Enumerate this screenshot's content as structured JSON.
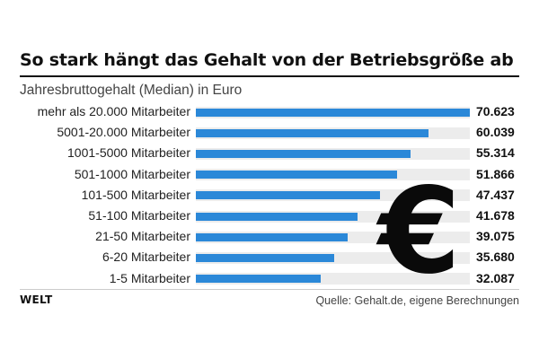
{
  "brand": "WELT",
  "source": "Quelle: Gehalt.de, eigene Berechnungen",
  "icon": "euro-sign-icon",
  "colors": {
    "bar": "#2b88d8",
    "track": "#ececec",
    "text": "#111111"
  },
  "chart_data": {
    "type": "bar",
    "orientation": "horizontal",
    "title": "So stark hängt das Gehalt von der Betriebsgröße ab",
    "subtitle": "Jahresbruttogehalt (Median) in Euro",
    "categories": [
      "mehr als 20.000 Mitarbeiter",
      "5001-20.000 Mitarbeiter",
      "1001-5000 Mitarbeiter",
      "501-1000 Mitarbeiter",
      "101-500 Mitarbeiter",
      "51-100 Mitarbeiter",
      "21-50 Mitarbeiter",
      "6-20 Mitarbeiter",
      "1-5 Mitarbeiter"
    ],
    "values": [
      70623,
      60039,
      55314,
      51866,
      47437,
      41678,
      39075,
      35680,
      32087
    ],
    "value_labels": [
      "70.623",
      "60.039",
      "55.314",
      "51.866",
      "47.437",
      "41.678",
      "39.075",
      "35.680",
      "32.087"
    ],
    "xlim": [
      0,
      70623
    ],
    "grid": false,
    "legend": "none"
  }
}
